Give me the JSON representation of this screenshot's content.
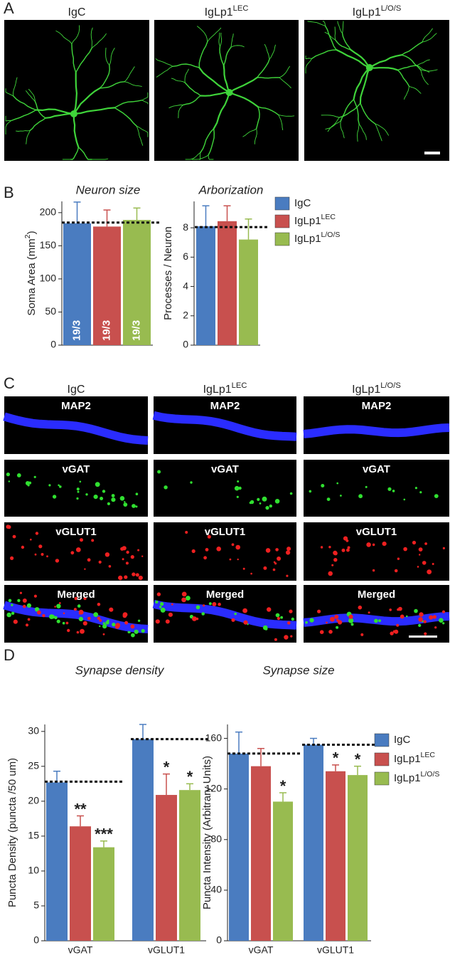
{
  "figure": {
    "panel_a": {
      "letter": "A",
      "columns": [
        {
          "text": "IgC"
        },
        {
          "text": "IgLp1",
          "sup": "LEC"
        },
        {
          "text": "IgLp1",
          "sup": "L/O/S"
        }
      ]
    },
    "panel_b": {
      "letter": "B"
    },
    "panel_c": {
      "letter": "C",
      "columns": [
        {
          "text": "IgC"
        },
        {
          "text": "IgLp1",
          "sup": "LEC"
        },
        {
          "text": "IgLp1",
          "sup": "L/O/S"
        }
      ],
      "rows": [
        "MAP2",
        "vGAT",
        "vGLUT1",
        "Merged"
      ]
    },
    "panel_d": {
      "letter": "D"
    }
  },
  "chart_data": [
    {
      "type": "bar",
      "title": "Neuron size",
      "ylabel": {
        "text": "Soma Area (mm",
        "sup": "2",
        "after": ")"
      },
      "ylim": [
        0,
        217
      ],
      "yticks": [
        0,
        50,
        100,
        150,
        200
      ],
      "reference_lines": [
        185
      ],
      "series": [
        {
          "color": "#4a7cc0",
          "values": [
            184
          ],
          "errors": [
            32
          ],
          "bar_labels": [
            "19/3"
          ]
        },
        {
          "color": "#c8504e",
          "values": [
            179
          ],
          "errors": [
            25
          ],
          "bar_labels": [
            "19/3"
          ]
        },
        {
          "color": "#98bb50",
          "values": [
            189
          ],
          "errors": [
            18
          ],
          "bar_labels": [
            "19/3"
          ]
        }
      ]
    },
    {
      "type": "bar",
      "title": "Arborization",
      "ylabel": {
        "text": "Processes / Neuron"
      },
      "ylim": [
        0,
        9.8
      ],
      "yticks": [
        0,
        2,
        4,
        6,
        8
      ],
      "reference_lines": [
        8.05
      ],
      "legend": "right",
      "series": [
        {
          "name": "IgC",
          "color": "#4a7cc0",
          "values": [
            8.1
          ],
          "errors": [
            1.4
          ]
        },
        {
          "name": "IgLp1",
          "name_sup": "LEC",
          "color": "#c8504e",
          "values": [
            8.45
          ],
          "errors": [
            1.05
          ]
        },
        {
          "name": "IgLp1",
          "name_sup": "L/O/S",
          "color": "#98bb50",
          "values": [
            7.2
          ],
          "errors": [
            1.4
          ]
        }
      ]
    },
    {
      "type": "bar",
      "title": "Synapse density",
      "ylabel": {
        "text": "Puncta Density (puncta /50 um)"
      },
      "categories": [
        "vGAT",
        "vGLUT1"
      ],
      "ylim": [
        0,
        31
      ],
      "yticks": [
        0,
        5,
        10,
        15,
        20,
        25,
        30
      ],
      "reference_lines": [
        22.8,
        28.9
      ],
      "series": [
        {
          "color": "#4a7cc0",
          "values": [
            22.7,
            28.9
          ],
          "errors": [
            1.6,
            2.1
          ]
        },
        {
          "color": "#c8504e",
          "values": [
            16.4,
            20.9
          ],
          "errors": [
            1.5,
            3.0
          ],
          "significance": [
            "**",
            "*"
          ]
        },
        {
          "color": "#98bb50",
          "values": [
            13.4,
            21.6
          ],
          "errors": [
            0.9,
            0.9
          ],
          "significance": [
            "***",
            "*"
          ]
        }
      ]
    },
    {
      "type": "bar",
      "title": "Synapse size",
      "ylabel": {
        "text": "Puncta Intensity (Arbitrary Units)"
      },
      "categories": [
        "vGAT",
        "vGLUT1"
      ],
      "ylim": [
        0,
        171
      ],
      "yticks": [
        0,
        40,
        80,
        120,
        160
      ],
      "reference_lines": [
        148,
        155
      ],
      "legend": "right",
      "series": [
        {
          "name": "IgC",
          "color": "#4a7cc0",
          "values": [
            148,
            155
          ],
          "errors": [
            17,
            5
          ]
        },
        {
          "name": "IgLp1",
          "name_sup": "LEC",
          "color": "#c8504e",
          "values": [
            138,
            134
          ],
          "errors": [
            14,
            5
          ],
          "significance": [
            null,
            "*"
          ]
        },
        {
          "name": "IgLp1",
          "name_sup": "L/O/S",
          "color": "#98bb50",
          "values": [
            110,
            131
          ],
          "errors": [
            7,
            7
          ],
          "significance": [
            "*",
            "*"
          ]
        }
      ]
    }
  ]
}
